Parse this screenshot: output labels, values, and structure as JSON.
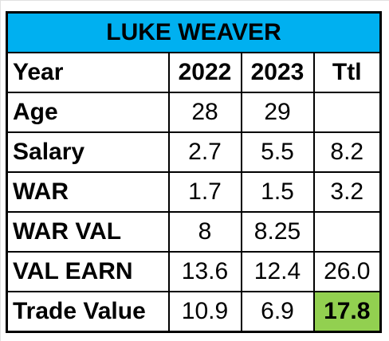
{
  "title": "LUKE WEAVER",
  "columns": [
    "Year",
    "2022",
    "2023",
    "Ttl"
  ],
  "rows": [
    {
      "label": "Age",
      "v2022": "28",
      "v2023": "29",
      "ttl": ""
    },
    {
      "label": "Salary",
      "v2022": "2.7",
      "v2023": "5.5",
      "ttl": "8.2"
    },
    {
      "label": "WAR",
      "v2022": "1.7",
      "v2023": "1.5",
      "ttl": "3.2"
    },
    {
      "label": "WAR VAL",
      "v2022": "8",
      "v2023": "8.25",
      "ttl": ""
    },
    {
      "label": "VAL EARN",
      "v2022": "13.6",
      "v2023": "12.4",
      "ttl": "26.0"
    },
    {
      "label": "Trade Value",
      "v2022": "10.9",
      "v2023": "6.9",
      "ttl": "17.8"
    }
  ],
  "colors": {
    "title_fill": "#00b0f0",
    "highlight_fill": "#92d050"
  }
}
